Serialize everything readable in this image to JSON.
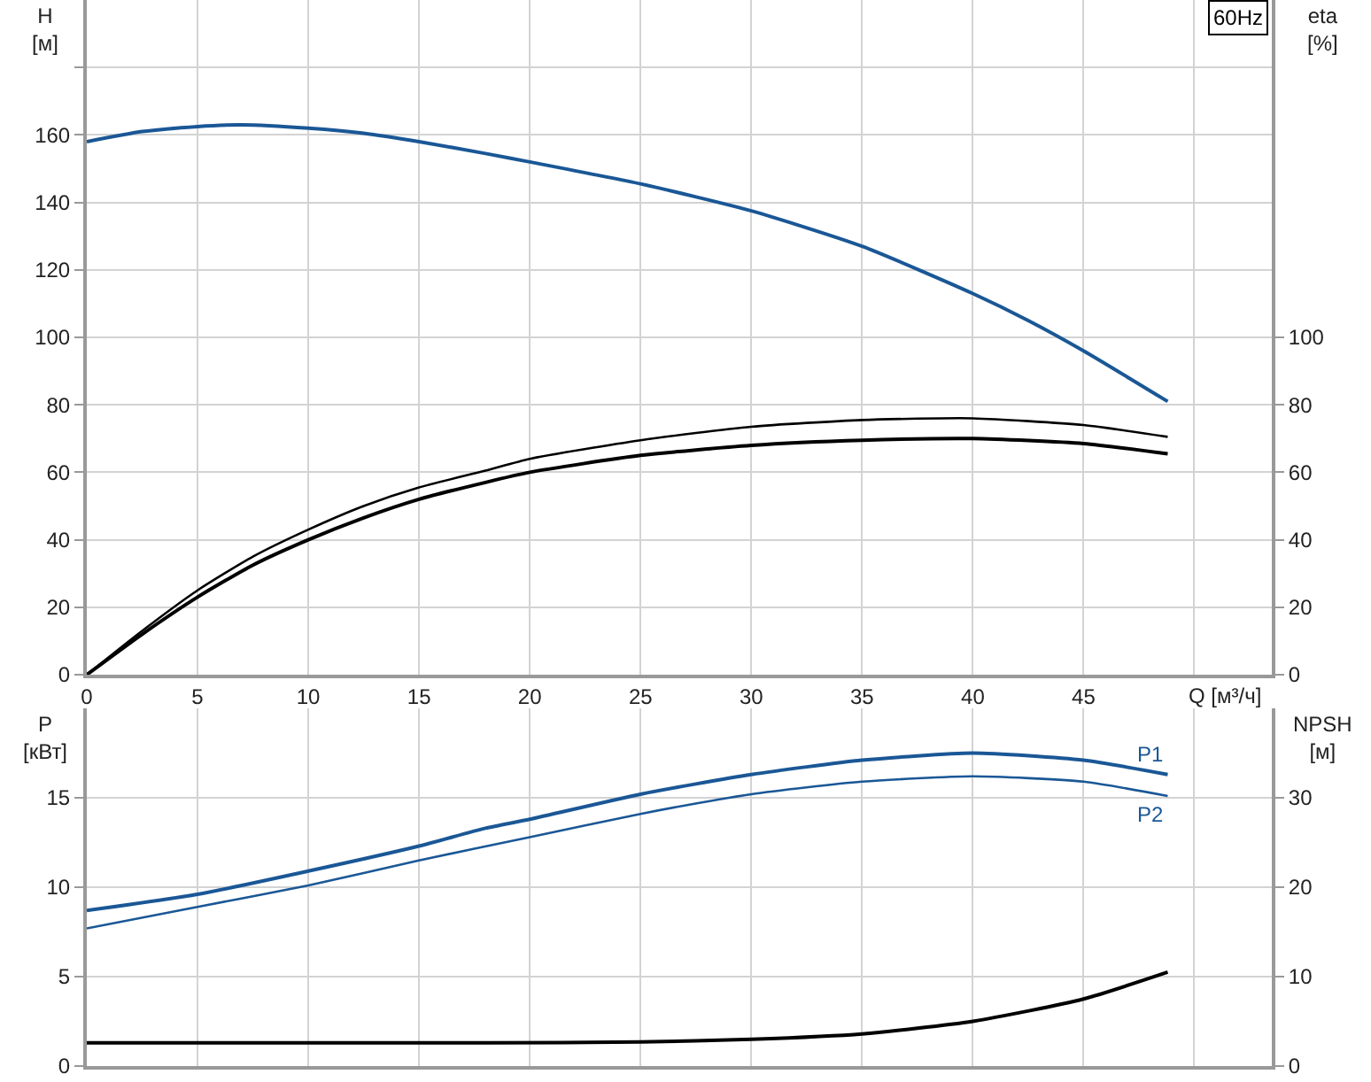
{
  "chart_data": [
    {
      "type": "line",
      "xlabel": "Q [м³/ч]",
      "ylabel": "H\n[м]",
      "y2label": "eta\n[%]",
      "annotations": [
        "60Hz"
      ],
      "grid": true,
      "xlim": [
        0,
        53.5
      ],
      "xticks": [
        0,
        5,
        10,
        15,
        20,
        25,
        30,
        35,
        40,
        45,
        {
          "value": 50,
          "label": null
        }
      ],
      "ylim": [
        0,
        200
      ],
      "yticks": [
        0,
        20,
        40,
        60,
        80,
        100,
        120,
        140,
        160,
        {
          "value": 180,
          "label": null
        }
      ],
      "y2lim": [
        0,
        200
      ],
      "y2ticks": [
        0,
        20,
        40,
        60,
        80,
        100
      ],
      "series": [
        {
          "color": "#1a5796",
          "x": [
            0,
            2.5,
            5,
            7,
            10,
            12.5,
            15,
            18,
            20,
            25,
            30,
            35,
            40,
            42.5,
            45,
            48.8
          ],
          "values": [
            158,
            161,
            162.5,
            163,
            162,
            160.5,
            158,
            154.5,
            152,
            145.5,
            137.5,
            127,
            113,
            105,
            96,
            81
          ]
        },
        {
          "color": "#000000",
          "axis": "y2",
          "x": [
            0,
            2.5,
            5,
            7.5,
            10,
            12.5,
            15,
            18,
            20,
            25,
            30,
            35,
            40,
            45,
            48.8
          ],
          "values": [
            0,
            13,
            25,
            35,
            43,
            50,
            55.5,
            60.5,
            64,
            69.5,
            73.5,
            75.5,
            76,
            74,
            70.5
          ]
        },
        {
          "color": "#000000",
          "axis": "y2",
          "x": [
            0,
            2.5,
            5,
            7.5,
            10,
            12.5,
            15,
            18,
            20,
            25,
            30,
            35,
            40,
            45,
            48.8
          ],
          "values": [
            0,
            12,
            23,
            32.5,
            40,
            46.5,
            52,
            57,
            60,
            65,
            68,
            69.5,
            70,
            68.5,
            65.5
          ]
        }
      ]
    },
    {
      "type": "line",
      "ylabel": "P\n[кВт]",
      "y2label": "NPSH\n[м]",
      "grid": true,
      "tick_labels": "y",
      "xlim": [
        0,
        53.5
      ],
      "xticks": [
        0,
        5,
        10,
        15,
        20,
        25,
        30,
        35,
        40,
        45,
        50
      ],
      "ylim": [
        0,
        20
      ],
      "yticks": [
        0,
        5,
        10,
        15
      ],
      "y2lim": [
        0,
        40
      ],
      "y2ticks": [
        0,
        10,
        20,
        30
      ],
      "series": [
        {
          "name": "P1",
          "color": "#1a5796",
          "x": [
            0,
            5,
            10,
            15,
            18,
            20,
            25,
            30,
            35,
            40,
            45,
            48.8
          ],
          "values": [
            8.7,
            9.6,
            10.9,
            12.3,
            13.3,
            13.8,
            15.2,
            16.3,
            17.1,
            17.5,
            17.1,
            16.3
          ]
        },
        {
          "name": "P2",
          "color": "#1a5796",
          "x": [
            0,
            5,
            10,
            15,
            20,
            25,
            30,
            35,
            40,
            45,
            48.8
          ],
          "values": [
            7.7,
            8.9,
            10.1,
            11.5,
            12.8,
            14.1,
            15.2,
            15.9,
            16.2,
            15.9,
            15.1
          ]
        },
        {
          "color": "#000000",
          "axis": "y2",
          "x": [
            0,
            10,
            18,
            25,
            30,
            35,
            40,
            45,
            48.8
          ],
          "values": [
            2.6,
            2.6,
            2.6,
            2.7,
            3.0,
            3.6,
            5.0,
            7.5,
            10.5
          ]
        }
      ]
    }
  ]
}
